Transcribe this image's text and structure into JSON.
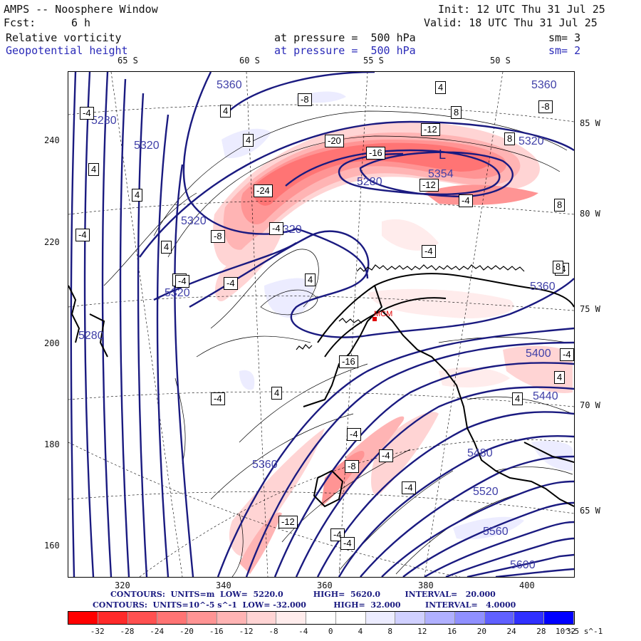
{
  "header": {
    "title": "AMPS -- Noosphere Window",
    "init": "Init: 12 UTC Thu 31 Jul 25",
    "fcst_label": "Fcst:",
    "fcst_value": "6 h",
    "valid": "Valid: 18 UTC Thu 31 Jul 25",
    "field1_name": "Relative vorticity",
    "field1_level": "at pressure =  500 hPa",
    "field1_sm": "sm= 3",
    "field2_name": "Geopotential height",
    "field2_level": "at pressure =  500 hPa",
    "field2_sm": "sm= 2"
  },
  "map": {
    "top_lat_labels": [
      "65 S",
      "60 S",
      "55 S",
      "50 S"
    ],
    "right_lon_labels": [
      "85 W",
      "80 W",
      "75 W",
      "70 W",
      "65 W"
    ],
    "left_axis_ticks": [
      "240",
      "220",
      "200",
      "180",
      "160"
    ],
    "bottom_axis_ticks": [
      "320",
      "340",
      "360",
      "380",
      "400"
    ],
    "height_labels": [
      "5360",
      "5360",
      "5280",
      "5320",
      "5320",
      "5320",
      "5280",
      "5354",
      "5320",
      "5360",
      "5280",
      "5400",
      "5440",
      "5480",
      "5360",
      "5520",
      "5560",
      "5600"
    ],
    "vort_box_labels": [
      "-8",
      "4",
      "4",
      "8",
      "8",
      "4",
      "-20",
      "-12",
      "-16",
      "-8",
      "-24",
      "-12",
      "-4",
      "-4",
      "-8",
      "-4",
      "4",
      "4",
      "-4",
      "8",
      "-4",
      "-4",
      "4",
      "-4",
      "-4",
      "4",
      "-4",
      "-16",
      "-4",
      "4",
      "8",
      "-4",
      "4",
      "4",
      "-4",
      "-4",
      "-8",
      "-4",
      "-12",
      "-4",
      "-4"
    ],
    "low_marker": "L",
    "station_marker": "MCM",
    "colors": {
      "height_contour": "#1a1a80",
      "vort_contour": "#000000",
      "coast": "#000000",
      "grid": "#000000"
    }
  },
  "footer": {
    "line1": "CONTOURS:  UNITS=m  LOW=  5220.0           HIGH=  5620.0         INTERVAL=   20.000",
    "line2": "CONTOURS:  UNITS=10^-5 s^-1  LOW= -32.000          HIGH=  32.000         INTERVAL=   4.0000"
  },
  "colorbar": {
    "labels": [
      "-32",
      "-28",
      "-24",
      "-20",
      "-16",
      "-12",
      "-8",
      "-4",
      "0",
      "4",
      "8",
      "12",
      "16",
      "20",
      "24",
      "28",
      "32",
      "10^-5 s^-1"
    ],
    "colors": [
      "#ff0000",
      "#ff2a2a",
      "#ff5050",
      "#ff7474",
      "#ff9494",
      "#ffb4b4",
      "#ffd4d4",
      "#ffecec",
      "#ffffff",
      "#ffffff",
      "#ececff",
      "#d0d0ff",
      "#b0b0ff",
      "#9090ff",
      "#6060ff",
      "#3030ff",
      "#0000ff"
    ]
  }
}
